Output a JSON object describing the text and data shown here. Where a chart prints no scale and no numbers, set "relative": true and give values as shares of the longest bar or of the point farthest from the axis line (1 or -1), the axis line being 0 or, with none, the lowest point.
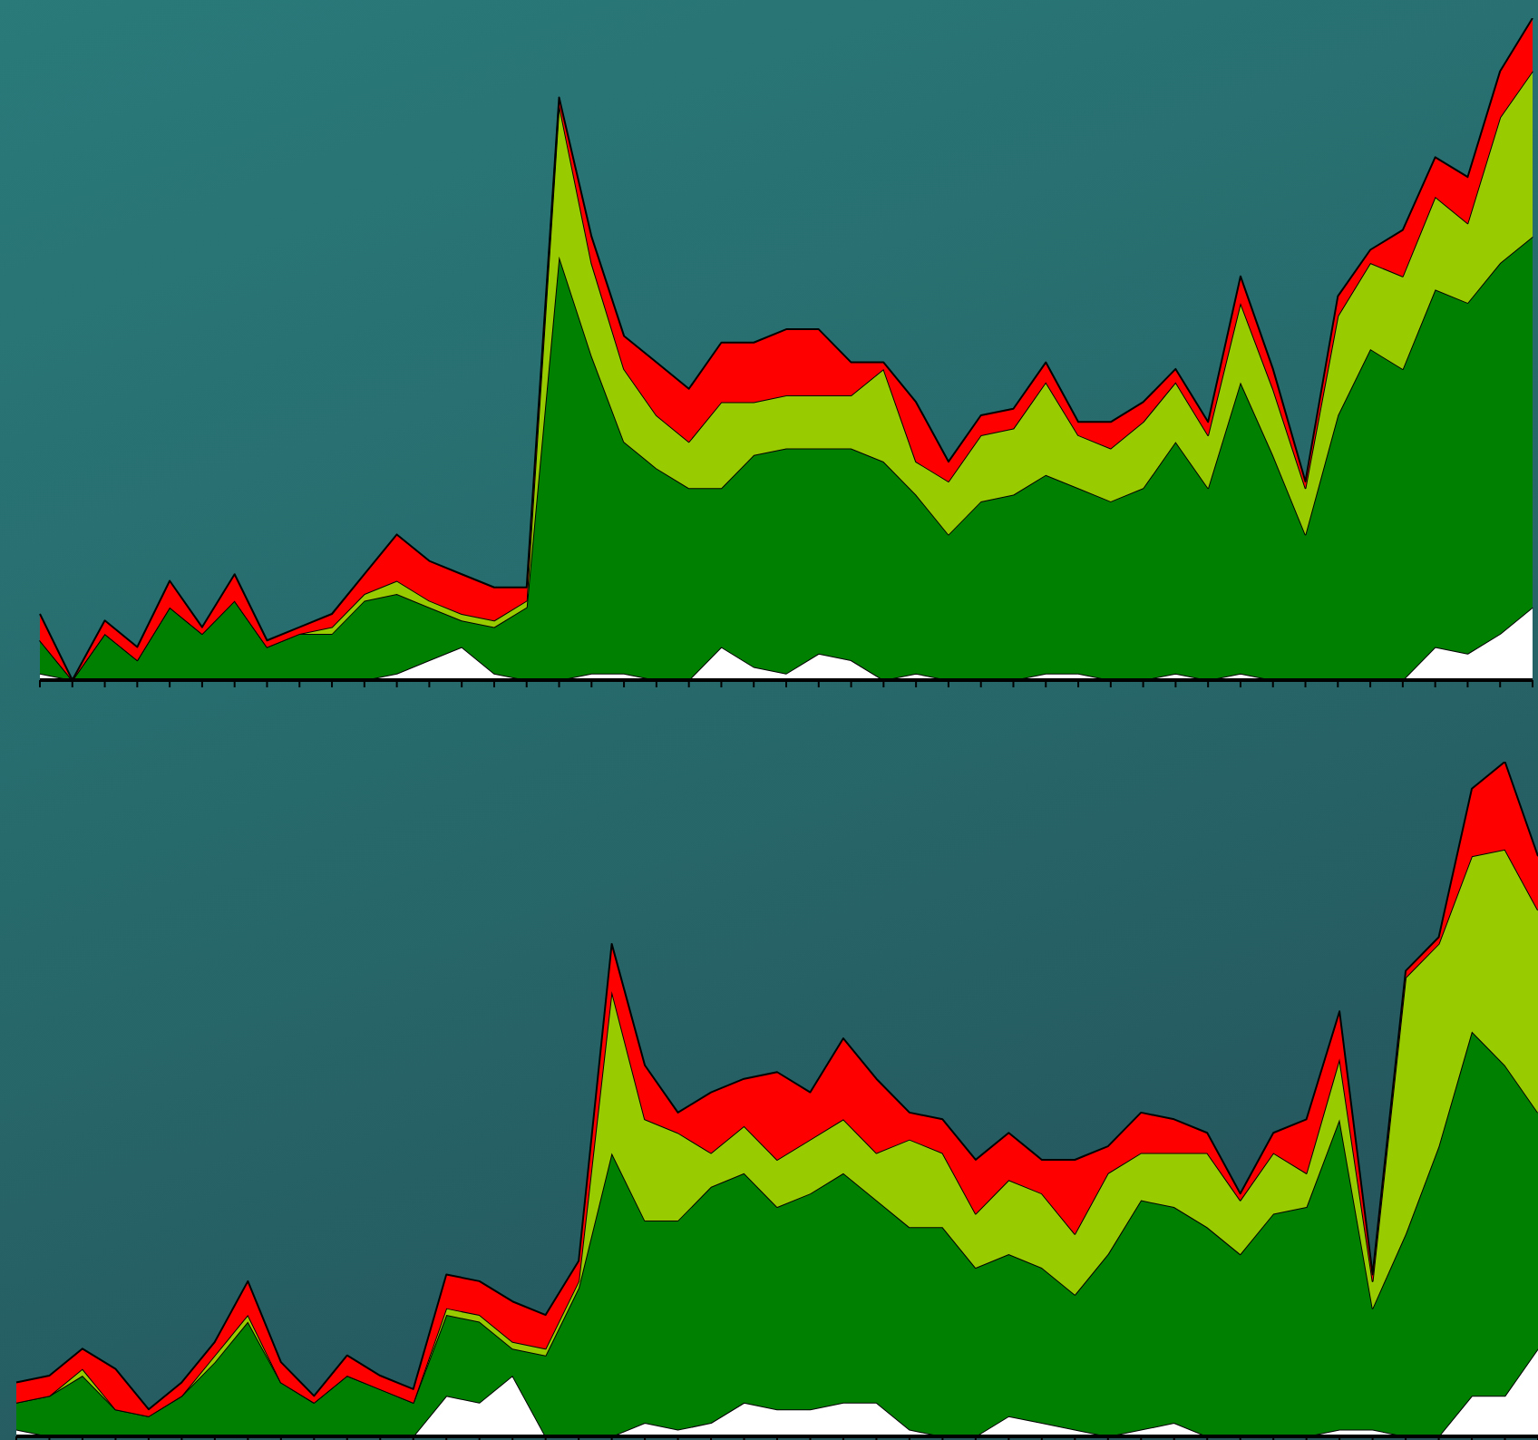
{
  "chart_data": [
    {
      "type": "area",
      "stacked": true,
      "relative": true,
      "categories": [
        null,
        null,
        null,
        null,
        null,
        null,
        null,
        null,
        null,
        null,
        null,
        null,
        null,
        null,
        null,
        null,
        null,
        null,
        null,
        null,
        null,
        null,
        null,
        null,
        null,
        null,
        null,
        null,
        null,
        null,
        null,
        null,
        null,
        null,
        null,
        null,
        null,
        null,
        null,
        null,
        null,
        null,
        null,
        null,
        null,
        null,
        null
      ],
      "series": [
        {
          "color": "#ffffff",
          "values": [
            0.01,
            0,
            0,
            0,
            0,
            0,
            0,
            0,
            0,
            0,
            0,
            0.01,
            0.03,
            0.05,
            0.01,
            0,
            0,
            0.01,
            0.01,
            0,
            0,
            0.05,
            0.02,
            0.01,
            0.04,
            0.03,
            0,
            0.01,
            0,
            0,
            0,
            0.01,
            0.01,
            0,
            0,
            0.01,
            0,
            0.01,
            0,
            0,
            0,
            0,
            0,
            0.05,
            0.04,
            0.07,
            0.11
          ]
        },
        {
          "color": "#008000",
          "values": [
            0.05,
            0,
            0.07,
            0.03,
            0.11,
            0.07,
            0.12,
            0.05,
            0.07,
            0.07,
            0.12,
            0.12,
            0.08,
            0.04,
            0.07,
            0.11,
            0.64,
            0.48,
            0.35,
            0.32,
            0.29,
            0.24,
            0.32,
            0.34,
            0.31,
            0.32,
            0.33,
            0.27,
            0.22,
            0.27,
            0.28,
            0.3,
            0.28,
            0.27,
            0.29,
            0.35,
            0.29,
            0.44,
            0.34,
            0.22,
            0.4,
            0.5,
            0.47,
            0.54,
            0.53,
            0.56,
            0.56
          ]
        },
        {
          "color": "#99cc00",
          "values": [
            0,
            0,
            0,
            0,
            0,
            0,
            0,
            0,
            0,
            0.01,
            0.01,
            0.02,
            0.01,
            0.01,
            0.01,
            0.01,
            0.23,
            0.14,
            0.11,
            0.08,
            0.07,
            0.13,
            0.08,
            0.08,
            0.08,
            0.08,
            0.14,
            0.05,
            0.08,
            0.1,
            0.1,
            0.14,
            0.08,
            0.08,
            0.1,
            0.09,
            0.08,
            0.12,
            0.1,
            0.07,
            0.15,
            0.13,
            0.14,
            0.14,
            0.12,
            0.22,
            0.25
          ]
        },
        {
          "color": "#ff0000",
          "values": [
            0.04,
            0,
            0.02,
            0.02,
            0.04,
            0.01,
            0.04,
            0.01,
            0.01,
            0.02,
            0.03,
            0.07,
            0.06,
            0.06,
            0.05,
            0.02,
            0.01,
            0.04,
            0.05,
            0.08,
            0.08,
            0.09,
            0.09,
            0.1,
            0.1,
            0.05,
            0.01,
            0.09,
            0.03,
            0.03,
            0.03,
            0.03,
            0.02,
            0.04,
            0.03,
            0.02,
            0.02,
            0.04,
            0.03,
            0.01,
            0.03,
            0.02,
            0.07,
            0.06,
            0.07,
            0.07,
            0.08
          ]
        }
      ]
    },
    {
      "type": "area",
      "stacked": true,
      "relative": true,
      "categories": [
        null,
        null,
        null,
        null,
        null,
        null,
        null,
        null,
        null,
        null,
        null,
        null,
        null,
        null,
        null,
        null,
        null,
        null,
        null,
        null,
        null,
        null,
        null,
        null,
        null,
        null,
        null,
        null,
        null,
        null,
        null,
        null,
        null,
        null,
        null,
        null,
        null,
        null,
        null,
        null,
        null,
        null,
        null,
        null,
        null,
        null,
        null
      ],
      "series": [
        {
          "color": "#ffffff",
          "values": [
            0.01,
            0,
            0,
            0,
            0,
            0,
            0,
            0,
            0,
            0,
            0,
            0,
            0,
            0.06,
            0.05,
            0.09,
            0,
            0,
            0,
            0.02,
            0.01,
            0.02,
            0.05,
            0.04,
            0.04,
            0.05,
            0.05,
            0.01,
            0,
            0,
            0.03,
            0.02,
            0.01,
            0,
            0.01,
            0.02,
            0,
            0,
            0,
            0,
            0.01,
            0.01,
            0,
            0,
            0.06,
            0.06,
            0.13
          ]
        },
        {
          "color": "#008000",
          "values": [
            0.04,
            0.06,
            0.09,
            0.04,
            0.03,
            0.06,
            0.11,
            0.17,
            0.08,
            0.05,
            0.09,
            0.07,
            0.05,
            0.12,
            0.12,
            0.04,
            0.12,
            0.22,
            0.42,
            0.3,
            0.31,
            0.35,
            0.34,
            0.3,
            0.32,
            0.34,
            0.3,
            0.3,
            0.31,
            0.25,
            0.24,
            0.23,
            0.2,
            0.27,
            0.34,
            0.32,
            0.31,
            0.27,
            0.33,
            0.34,
            0.46,
            0.18,
            0.3,
            0.43,
            0.54,
            0.49,
            0.35
          ]
        },
        {
          "color": "#99cc00",
          "values": [
            0,
            0,
            0.01,
            0,
            0,
            0,
            0.01,
            0.01,
            0,
            0,
            0,
            0,
            0,
            0.01,
            0.01,
            0.01,
            0.01,
            0.01,
            0.24,
            0.15,
            0.13,
            0.05,
            0.07,
            0.07,
            0.08,
            0.08,
            0.07,
            0.13,
            0.11,
            0.08,
            0.11,
            0.11,
            0.09,
            0.12,
            0.07,
            0.08,
            0.11,
            0.08,
            0.09,
            0.05,
            0.09,
            0.04,
            0.38,
            0.3,
            0.26,
            0.32,
            0.3
          ]
        },
        {
          "color": "#ff0000",
          "values": [
            0.03,
            0.03,
            0.03,
            0.06,
            0.01,
            0.02,
            0.02,
            0.05,
            0.03,
            0.01,
            0.03,
            0.02,
            0.02,
            0.05,
            0.05,
            0.06,
            0.05,
            0.03,
            0.07,
            0.08,
            0.03,
            0.09,
            0.07,
            0.13,
            0.07,
            0.12,
            0.11,
            0.04,
            0.05,
            0.08,
            0.07,
            0.05,
            0.11,
            0.04,
            0.06,
            0.05,
            0.03,
            0.01,
            0.03,
            0.08,
            0.07,
            0.01,
            0.01,
            0.01,
            0.1,
            0.13,
            0.08
          ]
        }
      ]
    }
  ]
}
